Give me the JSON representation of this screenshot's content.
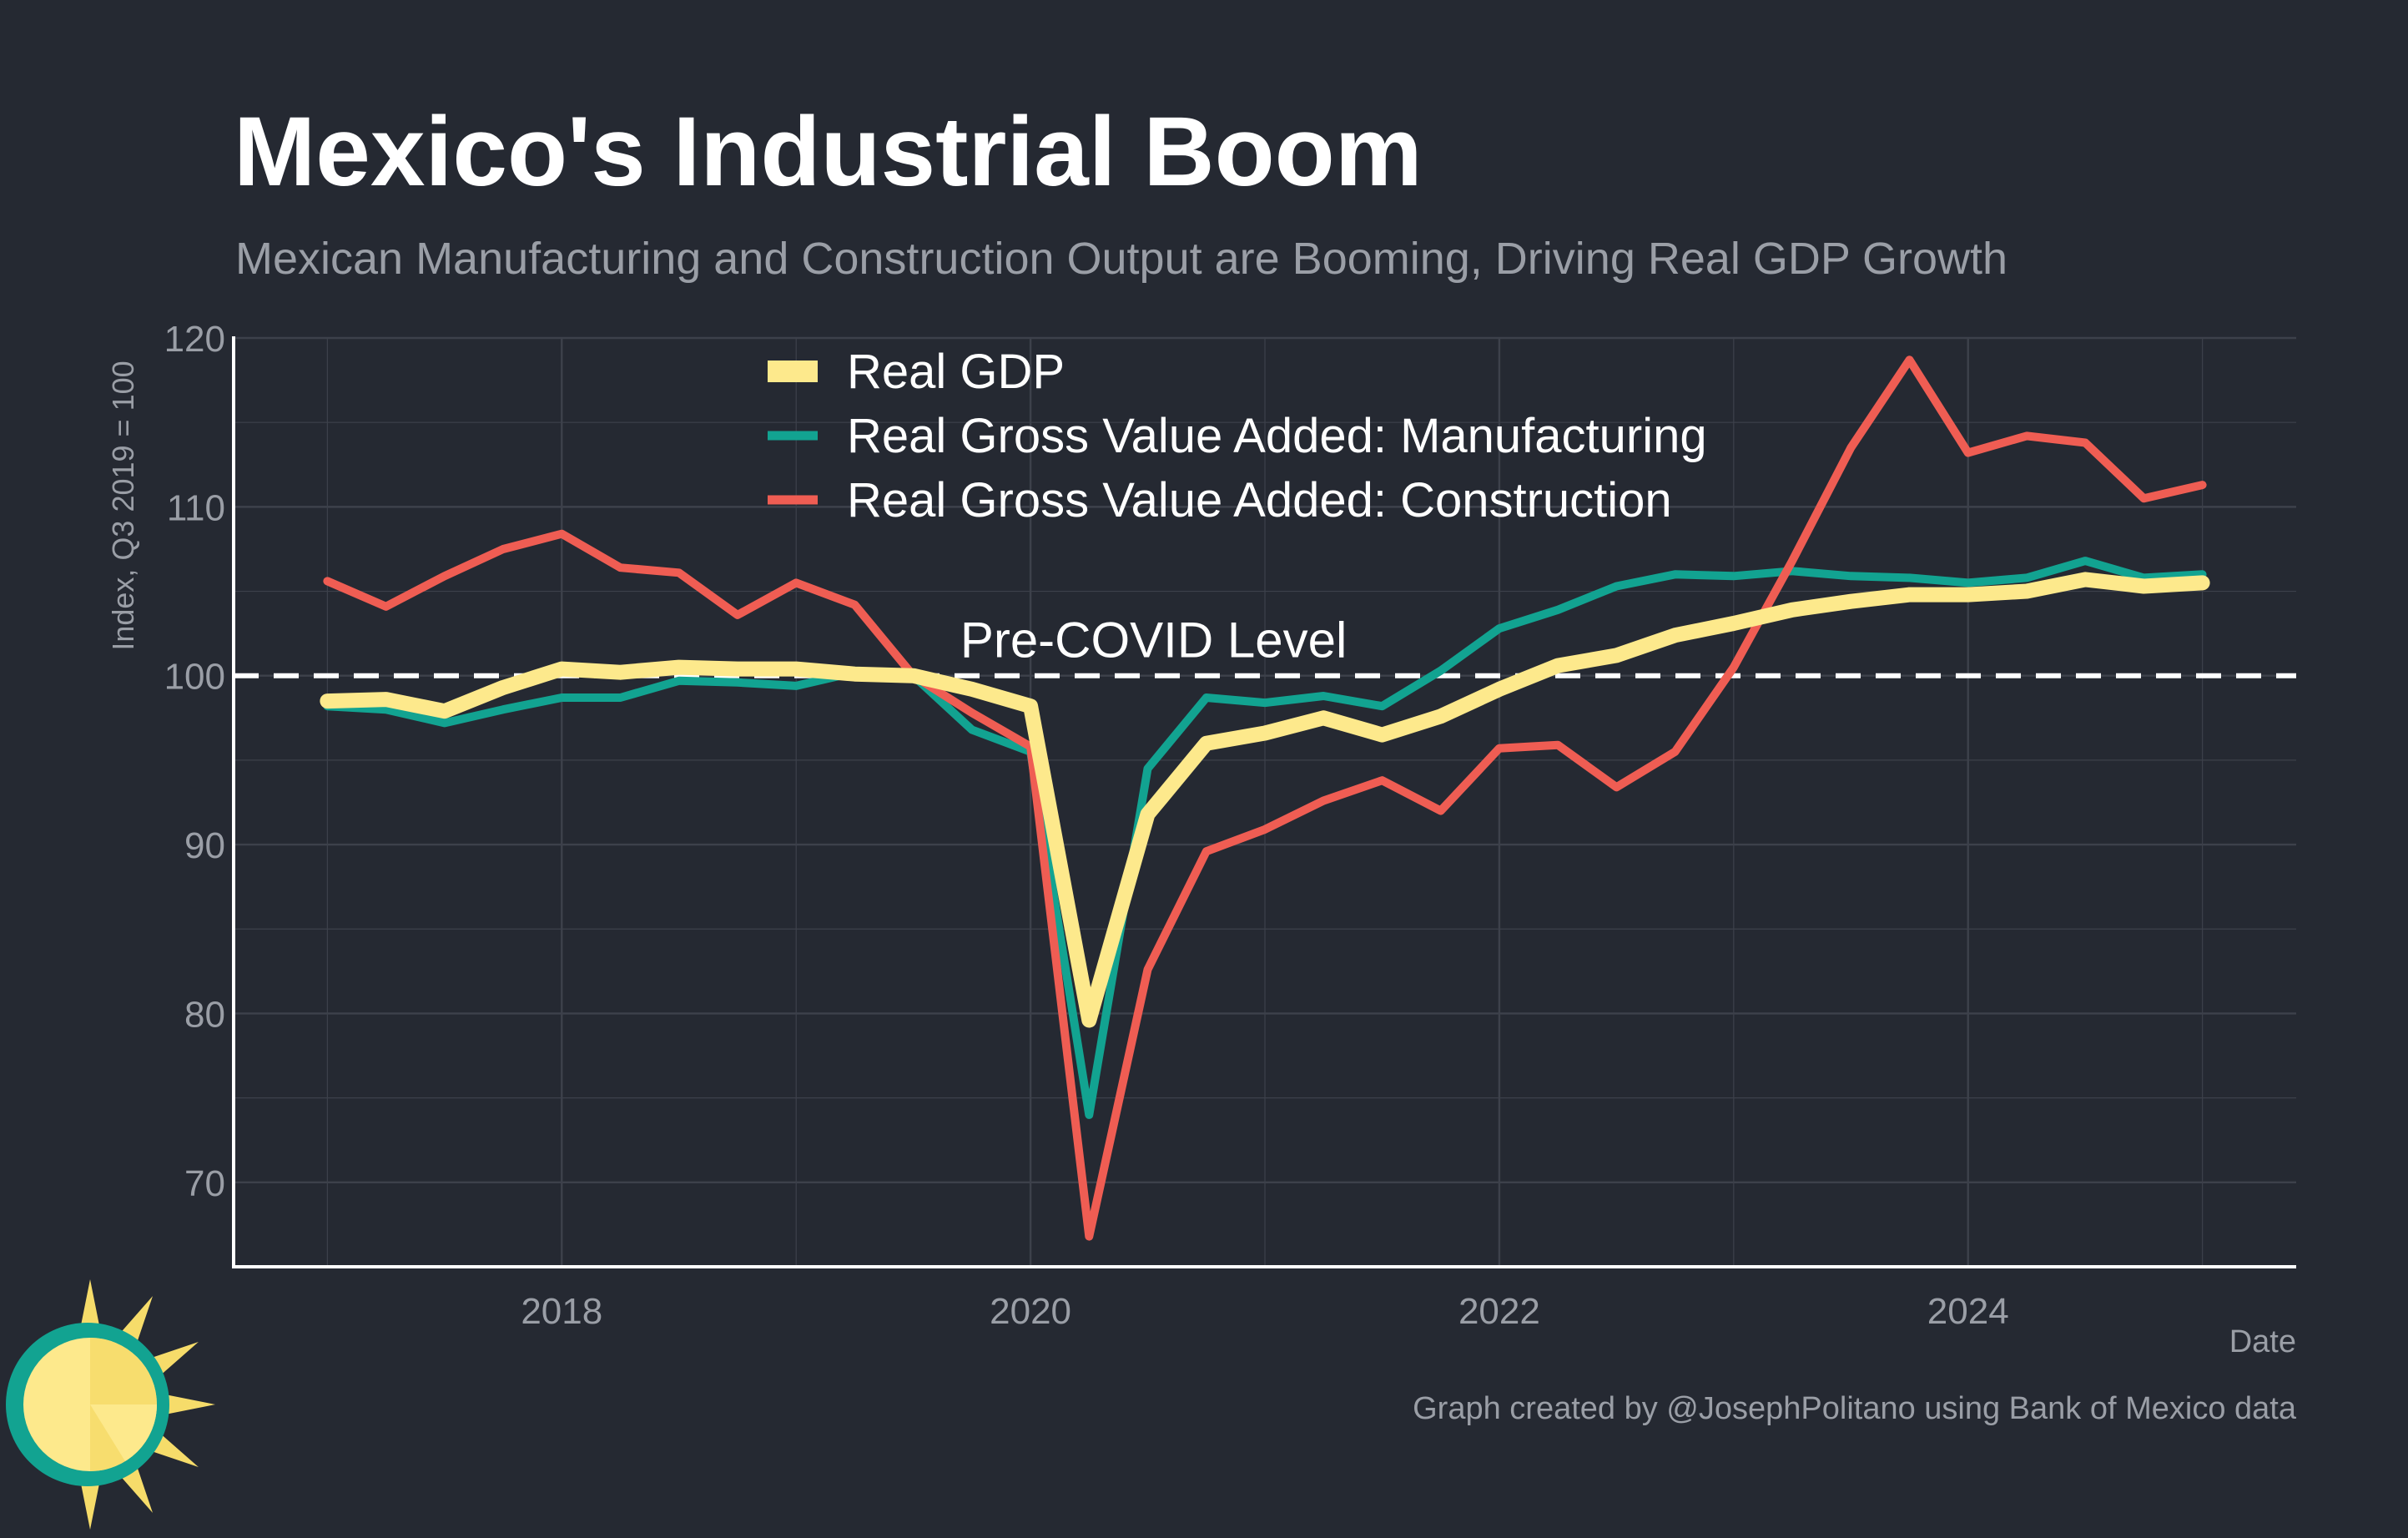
{
  "chart_data": {
    "type": "line",
    "title": "Mexico's Industrial Boom",
    "subtitle": "Mexican Manufacturing and Construction Output are Booming, Driving Real GDP Growth",
    "xlabel": "Date",
    "ylabel": "Index, Q3 2019 = 100",
    "caption": "Graph created by @JosephPolitano using Bank of Mexico data",
    "xlim": [
      2016.6,
      2025.4
    ],
    "ylim": [
      65,
      120
    ],
    "x_ticks": [
      2018,
      2020,
      2022,
      2024
    ],
    "x_tick_labels": [
      "2018",
      "2020",
      "2022",
      "2024"
    ],
    "y_ticks": [
      70,
      80,
      90,
      100,
      110,
      120
    ],
    "y_tick_labels": [
      "70",
      "80",
      "90",
      "100",
      "110",
      "120"
    ],
    "grid": true,
    "legend_position": "top-center",
    "reference_line": {
      "y": 100,
      "label": "Pre-COVID Level",
      "style": "dashed",
      "color": "#ffffff"
    },
    "x": [
      2017.0,
      2017.25,
      2017.5,
      2017.75,
      2018.0,
      2018.25,
      2018.5,
      2018.75,
      2019.0,
      2019.25,
      2019.5,
      2019.75,
      2020.0,
      2020.25,
      2020.5,
      2020.75,
      2021.0,
      2021.25,
      2021.5,
      2021.75,
      2022.0,
      2022.25,
      2022.5,
      2022.75,
      2023.0,
      2023.25,
      2023.5,
      2023.75,
      2024.0,
      2024.25,
      2024.5,
      2024.75,
      2025.0
    ],
    "series": [
      {
        "name": "Real Gross Value Added: Manufacturing",
        "color": "#12a391",
        "values": [
          98.2,
          98.0,
          97.2,
          98.0,
          98.7,
          98.7,
          99.7,
          99.6,
          99.4,
          100.2,
          100.0,
          96.8,
          95.5,
          74.0,
          94.5,
          98.7,
          98.4,
          98.8,
          98.2,
          100.3,
          102.8,
          103.9,
          105.3,
          106.0,
          105.9,
          106.2,
          105.9,
          105.8,
          105.5,
          105.8,
          106.8,
          105.8,
          106.0
        ]
      },
      {
        "name": "Real Gross Value Added: Construction",
        "color": "#ef5d53",
        "values": [
          105.6,
          104.1,
          105.9,
          107.5,
          108.4,
          106.4,
          106.1,
          103.6,
          105.5,
          104.2,
          100.0,
          97.8,
          95.8,
          66.8,
          82.6,
          89.6,
          90.9,
          92.6,
          93.8,
          92.0,
          95.7,
          95.9,
          93.4,
          95.5,
          100.5,
          106.8,
          113.5,
          118.7,
          113.2,
          114.2,
          113.8,
          110.5,
          111.3
        ]
      },
      {
        "name": "Real GDP",
        "color": "#fde98c",
        "values": [
          98.5,
          98.6,
          97.9,
          99.3,
          100.4,
          100.2,
          100.5,
          100.4,
          100.4,
          100.1,
          100.0,
          99.2,
          98.2,
          79.6,
          91.8,
          96.0,
          96.6,
          97.5,
          96.5,
          97.6,
          99.2,
          100.6,
          101.2,
          102.4,
          103.1,
          103.9,
          104.4,
          104.8,
          104.8,
          105.0,
          105.7,
          105.3,
          105.5
        ]
      }
    ],
    "legend_order": [
      "Real GDP",
      "Real Gross Value Added: Manufacturing",
      "Real Gross Value Added: Construction"
    ],
    "colors": {
      "background": "#252932",
      "grid": "#3d414b",
      "axis": "#ffffff",
      "muted_text": "#9a9ea6"
    }
  },
  "logo": {
    "icon": "sun-icon"
  }
}
